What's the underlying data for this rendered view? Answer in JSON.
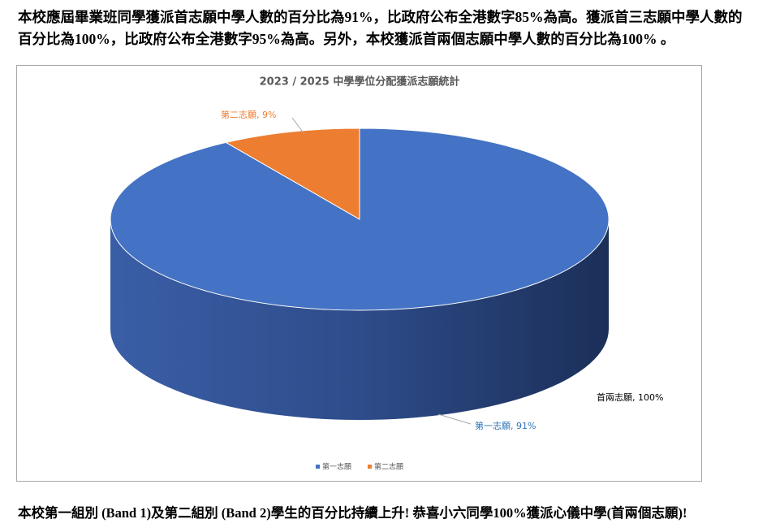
{
  "intro": "本校應屆畢業班同學獲派首志願中學人數的百分比為91%，比政府公布全港數字85%為高。獲派首三志願中學人數的百分比為100%，比政府公布全港數字95%為高。另外，本校獲派首兩個志願中學人數的百分比為100% 。",
  "chart_data": {
    "type": "pie3d",
    "title": "2023 / 2025 中學學位分配獲派志願統計",
    "categories": [
      "第一志願",
      "第二志願"
    ],
    "values": [
      91,
      9
    ],
    "value_labels": [
      "第一志願, 91%",
      "第二志願, 9%"
    ],
    "colors": [
      "#4472c4",
      "#ed7d31"
    ],
    "annotation": "首兩志願, 100%",
    "legend": "bottom"
  },
  "footer": "本校第一組別 (Band 1)及第二組別 (Band 2)學生的百分比持續上升! 恭喜小六同學100%獲派心儀中學(首兩個志願)!"
}
